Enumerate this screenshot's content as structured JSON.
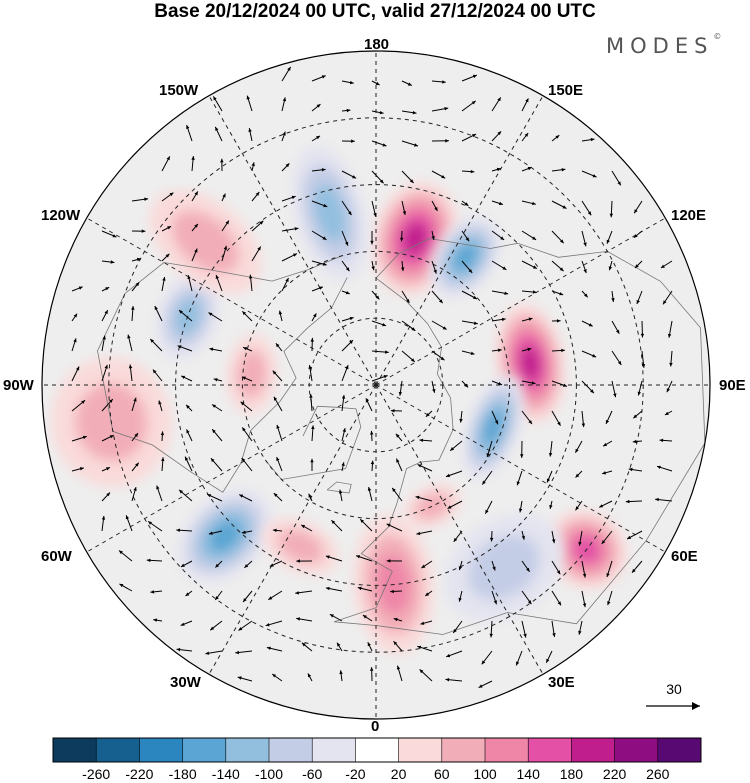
{
  "title": "Base 20/12/2024 00 UTC, valid 27/12/2024 00 UTC",
  "logo": "MODES",
  "logo_mark": "©",
  "longitude_labels": {
    "lon_180": "180",
    "lon_150w": "150W",
    "lon_150e": "150E",
    "lon_120w": "120W",
    "lon_120e": "120E",
    "lon_90w": "90W",
    "lon_90e": "90E",
    "lon_60w": "60W",
    "lon_60e": "60E",
    "lon_30w": "30W",
    "lon_30e": "30E",
    "lon_0": "0"
  },
  "vector_reference": "30",
  "colorbar": {
    "labels": [
      "-260",
      "-220",
      "-180",
      "-140",
      "-100",
      "-60",
      "-20",
      "20",
      "60",
      "100",
      "140",
      "180",
      "220",
      "260"
    ],
    "colors": [
      "#0d3b5e",
      "#16608f",
      "#2b85bf",
      "#5aa5d3",
      "#93bfdf",
      "#c4cde6",
      "#e4e4f0",
      "#ffffff",
      "#fadada",
      "#f2aeb8",
      "#ef86a8",
      "#e350a6",
      "#c01e8d",
      "#8e0e82",
      "#580a72"
    ]
  },
  "map": {
    "projection": "north polar stereographic",
    "anomaly_blobs": [
      {
        "lon": 165,
        "lat": 56,
        "rx": 42,
        "ry": 58,
        "level": 180
      },
      {
        "lon": 145,
        "lat": 55,
        "rx": 30,
        "ry": 45,
        "level": -140
      },
      {
        "lon": 98,
        "lat": 55,
        "rx": 60,
        "ry": 34,
        "level": 180
      },
      {
        "lon": 70,
        "lat": 62,
        "rx": 55,
        "ry": 26,
        "level": -140
      },
      {
        "lon": 52,
        "lat": 30,
        "rx": 38,
        "ry": 42,
        "level": 140
      },
      {
        "lon": 35,
        "lat": 40,
        "rx": 65,
        "ry": 48,
        "level": -60
      },
      {
        "lon": 5,
        "lat": 45,
        "rx": 40,
        "ry": 70,
        "level": 100
      },
      {
        "lon": -45,
        "lat": 42,
        "rx": 38,
        "ry": 55,
        "level": -140
      },
      {
        "lon": -82,
        "lat": 30,
        "rx": 65,
        "ry": 60,
        "level": 60
      },
      {
        "lon": -110,
        "lat": 45,
        "rx": 45,
        "ry": 30,
        "level": -100
      },
      {
        "lon": -130,
        "lat": 40,
        "rx": 40,
        "ry": 65,
        "level": 60
      },
      {
        "lon": -165,
        "lat": 50,
        "rx": 35,
        "ry": 70,
        "level": -100
      },
      {
        "lon": -95,
        "lat": 62,
        "rx": 40,
        "ry": 25,
        "level": 60
      },
      {
        "lon": 25,
        "lat": 60,
        "rx": 30,
        "ry": 20,
        "level": 60
      },
      {
        "lon": -25,
        "lat": 50,
        "rx": 40,
        "ry": 25,
        "level": 60
      }
    ]
  }
}
